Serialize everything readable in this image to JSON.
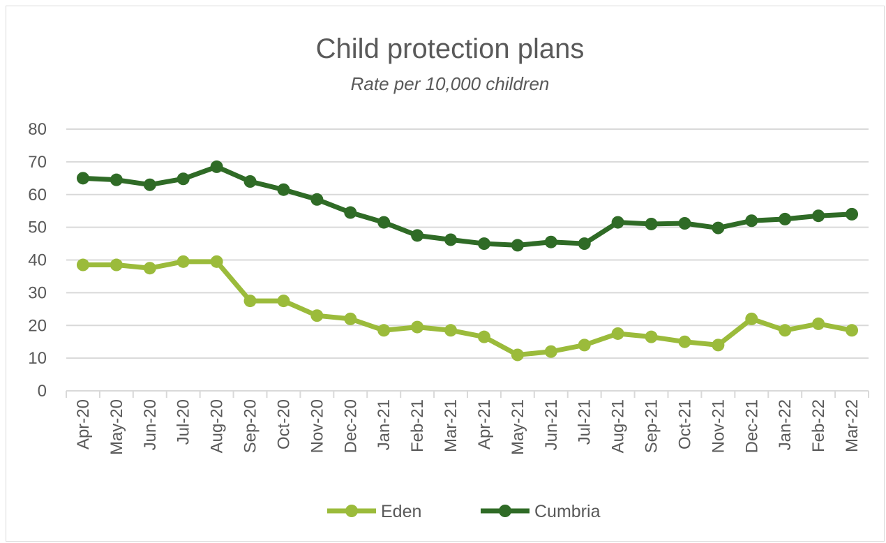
{
  "chart_data": {
    "type": "line",
    "title": "Child protection plans",
    "subtitle": "Rate per 10,000 children",
    "xlabel": "",
    "ylabel": "",
    "ylim": [
      0,
      80
    ],
    "yticks": [
      0,
      10,
      20,
      30,
      40,
      50,
      60,
      70,
      80
    ],
    "grid": true,
    "legend": "bottom-center",
    "categories": [
      "Apr-20",
      "May-20",
      "Jun-20",
      "Jul-20",
      "Aug-20",
      "Sep-20",
      "Oct-20",
      "Nov-20",
      "Dec-20",
      "Jan-21",
      "Feb-21",
      "Mar-21",
      "Apr-21",
      "May-21",
      "Jun-21",
      "Jul-21",
      "Aug-21",
      "Sep-21",
      "Oct-21",
      "Nov-21",
      "Dec-21",
      "Jan-22",
      "Feb-22",
      "Mar-22"
    ],
    "series": [
      {
        "name": "Eden",
        "color": "#9bbb3b",
        "values": [
          38.5,
          38.5,
          37.5,
          39.5,
          39.5,
          27.5,
          27.5,
          23,
          22,
          18.5,
          19.5,
          18.5,
          16.5,
          11,
          12,
          14,
          17.5,
          16.5,
          15,
          14,
          22,
          18.5,
          20.5,
          18.5
        ]
      },
      {
        "name": "Cumbria",
        "color": "#2f6b26",
        "values": [
          65,
          64.5,
          63,
          64.8,
          68.5,
          64,
          61.5,
          58.5,
          54.5,
          51.5,
          47.5,
          46.2,
          45,
          44.5,
          45.5,
          45,
          51.5,
          51,
          51.2,
          49.8,
          52,
          52.5,
          53.5,
          54
        ]
      }
    ]
  }
}
